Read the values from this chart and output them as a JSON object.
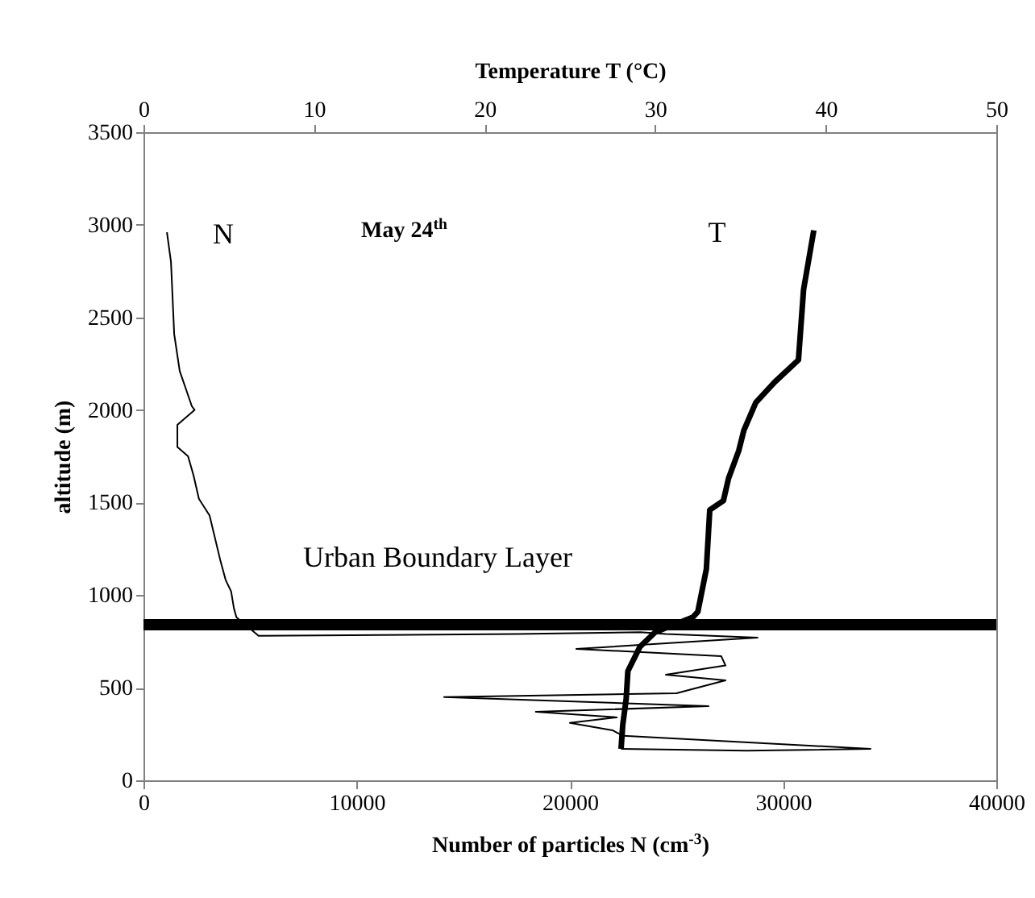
{
  "chart_data": {
    "type": "line",
    "xlabel": "Number of particles N (cm$^{-3}$)",
    "x2label": "Temperature T (°C)",
    "ylabel": "altitude (m)",
    "xlim": [
      0,
      40000
    ],
    "xticks": [
      0,
      10000,
      20000,
      30000,
      40000
    ],
    "x2lim": [
      0,
      50
    ],
    "x2ticks": [
      0,
      10,
      20,
      30,
      40,
      50
    ],
    "ylim": [
      0,
      3500
    ],
    "yticks": [
      0,
      500,
      1000,
      1500,
      2000,
      2500,
      3000,
      3500
    ],
    "grid": false,
    "marker": "none",
    "line_style": "solid",
    "series": [
      {
        "name": "N",
        "color": "#000000",
        "x": [
          1100,
          1290,
          1440,
          1700,
          1970,
          2270,
          2400,
          1590,
          1590,
          2090,
          2340,
          2600,
          3100,
          3600,
          3860,
          4110,
          4240,
          4360,
          5400,
          17500,
          23300,
          24500,
          28800,
          20300,
          27100,
          27300,
          24500,
          27300,
          25000,
          14100,
          26500,
          18400,
          22200,
          20000,
          22000,
          22500,
          34100,
          28300,
          22400
        ],
        "values": [
          2960,
          2800,
          2410,
          2210,
          2120,
          2020,
          2000,
          1920,
          1800,
          1750,
          1650,
          1520,
          1430,
          1190,
          1080,
          1020,
          930,
          880,
          780,
          790,
          800,
          790,
          770,
          710,
          670,
          620,
          570,
          540,
          470,
          450,
          400,
          370,
          340,
          310,
          270,
          240,
          170,
          160,
          170
        ]
      },
      {
        "name": "T",
        "color": "#000000",
        "axis": "x2",
        "x": [
          39.3,
          38.7,
          38.4,
          37.0,
          35.9,
          35.2,
          34.9,
          34.3,
          34.0,
          33.2,
          33.0,
          32.5,
          32.2,
          30.0,
          29.1,
          28.4,
          28.3,
          28.1,
          28.0
        ],
        "values": [
          2970,
          2650,
          2270,
          2150,
          2040,
          1890,
          1780,
          1630,
          1510,
          1460,
          1140,
          910,
          880,
          800,
          720,
          590,
          440,
          300,
          170
        ]
      }
    ],
    "ref_lines": [
      {
        "axis": "y",
        "value": 840,
        "label": "Urban Boundary Layer"
      }
    ],
    "annotations": [
      "May 24$^{th}$"
    ]
  }
}
